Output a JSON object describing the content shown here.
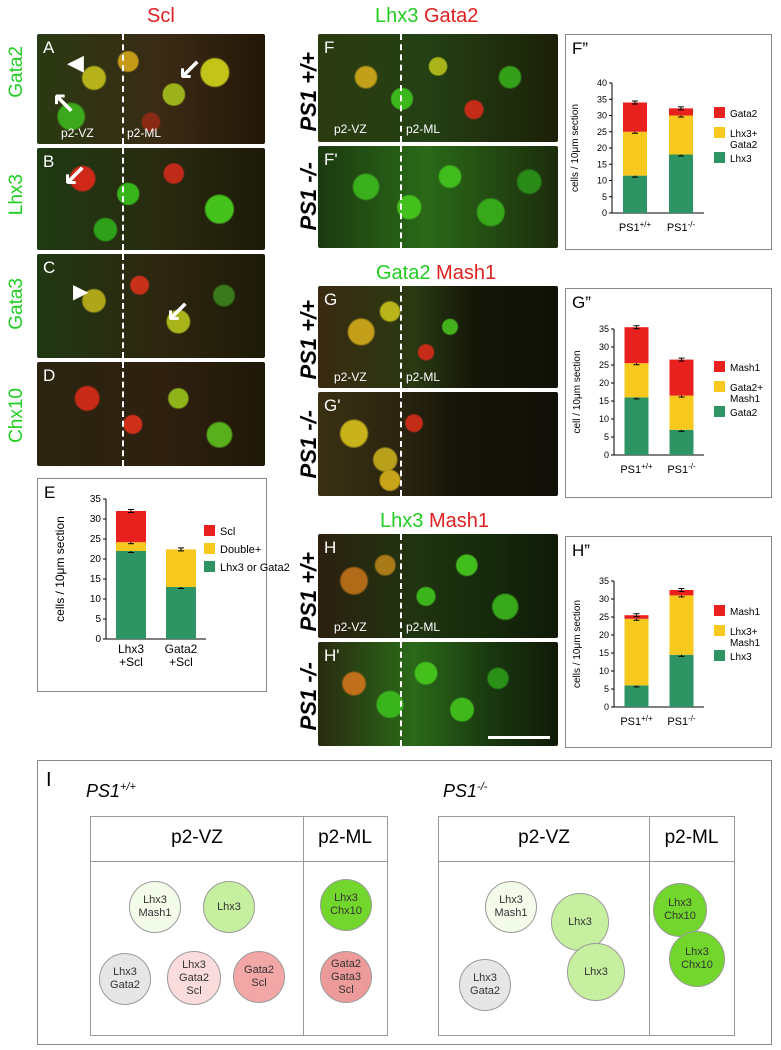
{
  "panels_left": {
    "title": "Scl",
    "rows": [
      {
        "letter": "A",
        "marker": "Gata2",
        "vz": "p2-VZ",
        "ml": "p2-ML"
      },
      {
        "letter": "B",
        "marker": "Lhx3"
      },
      {
        "letter": "C",
        "marker": "Gata3"
      },
      {
        "letter": "D",
        "marker": "Chx10"
      }
    ]
  },
  "panels_right": {
    "groups": [
      {
        "title_green": "Lhx3",
        "title_red": "Gata2",
        "top_letter": "F",
        "bottom_letter": "F'",
        "vz": "p2-VZ",
        "ml": "p2-ML",
        "wt": "PS1 +/+",
        "ko": "PS1 -/-"
      },
      {
        "title_green": "Gata2",
        "title_red": "Mash1",
        "top_letter": "G",
        "bottom_letter": "G'",
        "vz": "p2-VZ",
        "ml": "p2-ML",
        "wt": "PS1 +/+",
        "ko": "PS1 -/-"
      },
      {
        "title_green": "Lhx3",
        "title_red": "Mash1",
        "top_letter": "H",
        "bottom_letter": "H'",
        "vz": "p2-VZ",
        "ml": "p2-ML",
        "wt": "PS1 +/+",
        "ko": "PS1 -/-"
      }
    ]
  },
  "colors": {
    "red": "#e8201e",
    "yellow": "#f7c81e",
    "green": "#2e9464"
  },
  "chart_data": [
    {
      "panel": "E",
      "type": "bar",
      "stacked": true,
      "categories": [
        "Lhx3\n+Scl",
        "Gata2\n+Scl"
      ],
      "ylabel": "cells / 10μm section",
      "ylim": [
        0,
        35
      ],
      "yticks": [
        0,
        5,
        10,
        15,
        20,
        25,
        30,
        35
      ],
      "series": [
        {
          "name": "Lhx3 or Gata2",
          "color": "#2e9464",
          "values": [
            22,
            13
          ]
        },
        {
          "name": "Double+",
          "color": "#f7c81e",
          "values": [
            2.2,
            9.4
          ]
        },
        {
          "name": "Scl",
          "color": "#e8201e",
          "values": [
            7.8,
            0
          ]
        }
      ]
    },
    {
      "panel": "F\"",
      "type": "bar",
      "stacked": true,
      "categories": [
        "PS1+/+",
        "PS1-/-"
      ],
      "ylabel": "cells / 10μm section",
      "ylim": [
        0,
        40
      ],
      "yticks": [
        0,
        5,
        10,
        15,
        20,
        25,
        30,
        35,
        40
      ],
      "series": [
        {
          "name": "Lhx3",
          "color": "#2e9464",
          "values": [
            11.5,
            18
          ]
        },
        {
          "name": "Lhx3+\nGata2",
          "color": "#f7c81e",
          "values": [
            13.5,
            12
          ]
        },
        {
          "name": "Gata2",
          "color": "#e8201e",
          "values": [
            9,
            2.2
          ]
        }
      ]
    },
    {
      "panel": "G\"",
      "type": "bar",
      "stacked": true,
      "categories": [
        "PS1+/+",
        "PS1-/-"
      ],
      "ylabel": "cell / 10μm section",
      "ylim": [
        0,
        35
      ],
      "yticks": [
        0,
        5,
        10,
        15,
        20,
        25,
        30,
        35
      ],
      "series": [
        {
          "name": "Gata2",
          "color": "#2e9464",
          "values": [
            16,
            7
          ]
        },
        {
          "name": "Gata2+\nMash1",
          "color": "#f7c81e",
          "values": [
            9.5,
            9.5
          ]
        },
        {
          "name": "Mash1",
          "color": "#e8201e",
          "values": [
            10,
            10
          ]
        }
      ]
    },
    {
      "panel": "H\"",
      "type": "bar",
      "stacked": true,
      "categories": [
        "PS1+/+",
        "PS1-/-"
      ],
      "ylabel": "cells / 10μm section",
      "ylim": [
        0,
        35
      ],
      "yticks": [
        0,
        5,
        10,
        15,
        20,
        25,
        30,
        35
      ],
      "series": [
        {
          "name": "Lhx3",
          "color": "#2e9464",
          "values": [
            6,
            14.5
          ]
        },
        {
          "name": "Lhx3+\nMash1",
          "color": "#f7c81e",
          "values": [
            18.5,
            16.5
          ]
        },
        {
          "name": "Mash1",
          "color": "#e8201e",
          "values": [
            1,
            1.5
          ]
        }
      ]
    }
  ],
  "panelE": {
    "letter": "E"
  },
  "panelI": {
    "letter": "I",
    "wt": {
      "label": "PS1",
      "sup": "+/+",
      "vz": "p2-VZ",
      "ml": "p2-ML",
      "vz_cells": [
        {
          "lines": [
            "Lhx3",
            "Mash1"
          ],
          "color": "#f3fbe9"
        },
        {
          "lines": [
            "Lhx3"
          ],
          "color": "#c6f0a0"
        },
        {
          "lines": [
            "Lhx3",
            "Gata2"
          ],
          "color": "#e6e6e6"
        },
        {
          "lines": [
            "Lhx3",
            "Gata2",
            "Scl"
          ],
          "color": "#fbdcdc"
        },
        {
          "lines": [
            "Gata2",
            "Scl"
          ],
          "color": "#f2a6a6"
        }
      ],
      "ml_cells": [
        {
          "lines": [
            "Lhx3",
            "Chx10"
          ],
          "color": "#72d62c"
        },
        {
          "lines": [
            "Gata2",
            "Gata3",
            "Scl"
          ],
          "color": "#ec9a9a"
        }
      ]
    },
    "ko": {
      "label": "PS1",
      "sup": "-/-",
      "vz": "p2-VZ",
      "ml": "p2-ML",
      "vz_cells": [
        {
          "lines": [
            "Lhx3",
            "Mash1"
          ],
          "color": "#f3fbe9"
        },
        {
          "lines": [
            "Lhx3"
          ],
          "color": "#c6f0a0"
        },
        {
          "lines": [
            "Lhx3"
          ],
          "color": "#c6f0a0"
        },
        {
          "lines": [
            "Lhx3",
            "Gata2"
          ],
          "color": "#e6e6e6"
        }
      ],
      "ml_cells": [
        {
          "lines": [
            "Lhx3",
            "Chx10"
          ],
          "color": "#72d62c"
        },
        {
          "lines": [
            "Lhx3",
            "Chx10"
          ],
          "color": "#72d62c"
        }
      ]
    }
  }
}
